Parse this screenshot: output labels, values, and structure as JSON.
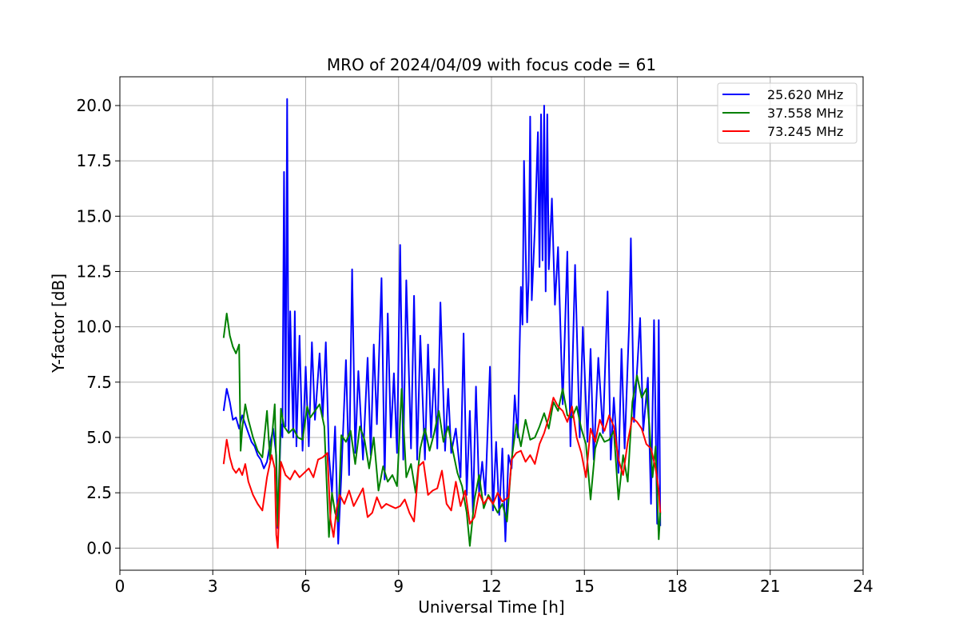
{
  "chart_data": {
    "type": "line",
    "title": "MRO of 2024/04/09 with focus code = 61",
    "xlabel": "Universal Time [h]",
    "ylabel": "Y-factor [dB]",
    "xlim": [
      0,
      24
    ],
    "ylim": [
      -1.0,
      21.3
    ],
    "xticks": [
      0,
      3,
      6,
      9,
      12,
      15,
      18,
      21,
      24
    ],
    "xtick_labels": [
      "0",
      "3",
      "6",
      "9",
      "12",
      "15",
      "18",
      "21",
      "24"
    ],
    "yticks": [
      0.0,
      2.5,
      5.0,
      7.5,
      10.0,
      12.5,
      15.0,
      17.5,
      20.0
    ],
    "ytick_labels": [
      "0.0",
      "2.5",
      "5.0",
      "7.5",
      "10.0",
      "12.5",
      "15.0",
      "17.5",
      "20.0"
    ],
    "grid": true,
    "legend_position": "top-right",
    "series": [
      {
        "name": "25.620 MHz",
        "color": "#0000ff",
        "x": [
          3.35,
          3.45,
          3.55,
          3.65,
          3.75,
          3.85,
          3.95,
          4.05,
          4.15,
          4.25,
          4.35,
          4.45,
          4.55,
          4.65,
          4.75,
          4.85,
          4.95,
          5.05,
          5.1,
          5.2,
          5.25,
          5.3,
          5.35,
          5.4,
          5.45,
          5.5,
          5.6,
          5.65,
          5.7,
          5.8,
          5.9,
          6.0,
          6.1,
          6.2,
          6.3,
          6.45,
          6.55,
          6.65,
          6.75,
          6.85,
          6.95,
          7.05,
          7.15,
          7.3,
          7.4,
          7.5,
          7.6,
          7.7,
          7.85,
          8.0,
          8.1,
          8.2,
          8.3,
          8.45,
          8.55,
          8.65,
          8.75,
          8.85,
          8.95,
          9.05,
          9.15,
          9.25,
          9.4,
          9.5,
          9.6,
          9.7,
          9.85,
          9.95,
          10.05,
          10.15,
          10.25,
          10.35,
          10.5,
          10.6,
          10.7,
          10.85,
          11.0,
          11.1,
          11.2,
          11.3,
          11.4,
          11.5,
          11.6,
          11.7,
          11.8,
          11.95,
          12.05,
          12.15,
          12.25,
          12.35,
          12.45,
          12.55,
          12.65,
          12.75,
          12.85,
          12.95,
          13.0,
          13.05,
          13.1,
          13.15,
          13.2,
          13.25,
          13.3,
          13.4,
          13.5,
          13.55,
          13.6,
          13.65,
          13.7,
          13.75,
          13.8,
          13.85,
          13.95,
          14.05,
          14.15,
          14.3,
          14.45,
          14.55,
          14.7,
          14.85,
          14.95,
          15.1,
          15.2,
          15.3,
          15.45,
          15.6,
          15.75,
          15.85,
          15.95,
          16.1,
          16.2,
          16.3,
          16.45,
          16.5,
          16.6,
          16.7,
          16.8,
          16.9,
          17.05,
          17.15,
          17.25,
          17.35,
          17.4,
          17.45
        ],
        "values": [
          6.2,
          7.2,
          6.6,
          5.8,
          5.9,
          5.4,
          6.0,
          5.6,
          5.2,
          4.8,
          4.6,
          4.2,
          4.0,
          3.6,
          3.9,
          4.7,
          5.4,
          4.2,
          0.9,
          5.6,
          5.0,
          17.0,
          5.5,
          20.3,
          5.3,
          10.7,
          5.0,
          10.7,
          4.6,
          9.6,
          4.4,
          8.2,
          4.6,
          9.3,
          5.8,
          8.8,
          5.9,
          9.3,
          4.2,
          2.5,
          5.5,
          0.2,
          3.3,
          8.5,
          3.3,
          12.6,
          4.3,
          8.0,
          4.0,
          8.6,
          4.2,
          9.2,
          5.6,
          12.2,
          3.1,
          10.6,
          5.0,
          7.9,
          4.3,
          13.7,
          4.0,
          12.1,
          4.5,
          11.4,
          4.0,
          9.6,
          4.0,
          9.2,
          5.0,
          8.1,
          4.5,
          11.1,
          4.4,
          7.2,
          4.3,
          5.4,
          3.2,
          9.7,
          2.4,
          6.2,
          1.6,
          7.3,
          2.5,
          3.9,
          2.4,
          8.2,
          1.7,
          4.8,
          1.5,
          4.5,
          0.3,
          4.2,
          3.6,
          6.9,
          5.0,
          11.8,
          10.1,
          17.5,
          13.8,
          10.2,
          12.1,
          19.5,
          11.2,
          14.5,
          18.8,
          12.7,
          19.6,
          13.0,
          20.0,
          11.6,
          19.6,
          12.6,
          15.8,
          11.0,
          13.6,
          6.5,
          13.4,
          4.6,
          12.8,
          5.0,
          10.0,
          4.8,
          9.0,
          4.0,
          8.6,
          5.2,
          11.6,
          4.0,
          6.8,
          3.4,
          9.0,
          4.5,
          10.3,
          14.0,
          5.7,
          8.0,
          10.4,
          5.3,
          7.7,
          2.0,
          10.3,
          1.1,
          10.3,
          1.0
        ]
      },
      {
        "name": "37.558 MHz",
        "color": "#008000",
        "x": [
          3.35,
          3.45,
          3.55,
          3.65,
          3.75,
          3.85,
          3.9,
          3.95,
          4.05,
          4.15,
          4.3,
          4.45,
          4.6,
          4.75,
          4.85,
          5.0,
          5.1,
          5.2,
          5.3,
          5.45,
          5.6,
          5.75,
          5.9,
          6.05,
          6.15,
          6.3,
          6.45,
          6.6,
          6.75,
          6.85,
          6.95,
          7.05,
          7.15,
          7.3,
          7.45,
          7.6,
          7.75,
          7.9,
          8.05,
          8.2,
          8.35,
          8.5,
          8.65,
          8.8,
          8.95,
          9.1,
          9.25,
          9.4,
          9.55,
          9.7,
          9.85,
          10.0,
          10.15,
          10.3,
          10.45,
          10.6,
          10.75,
          10.9,
          11.05,
          11.2,
          11.3,
          11.45,
          11.6,
          11.75,
          11.9,
          12.05,
          12.2,
          12.35,
          12.5,
          12.65,
          12.8,
          12.95,
          13.1,
          13.25,
          13.4,
          13.55,
          13.7,
          13.85,
          14.0,
          14.15,
          14.3,
          14.45,
          14.6,
          14.75,
          14.9,
          15.05,
          15.2,
          15.35,
          15.5,
          15.65,
          15.8,
          15.95,
          16.1,
          16.25,
          16.4,
          16.55,
          16.7,
          16.85,
          17.0,
          17.1,
          17.2,
          17.3,
          17.4,
          17.45
        ],
        "values": [
          9.5,
          10.6,
          9.6,
          9.1,
          8.8,
          9.2,
          4.4,
          5.4,
          6.5,
          5.8,
          5.0,
          4.4,
          4.1,
          6.2,
          4.0,
          6.5,
          1.0,
          6.3,
          5.5,
          5.2,
          5.4,
          5.0,
          4.9,
          6.4,
          5.9,
          6.2,
          6.5,
          5.5,
          0.5,
          2.5,
          1.6,
          1.2,
          5.1,
          4.8,
          5.3,
          3.8,
          5.5,
          4.9,
          3.6,
          5.0,
          2.6,
          3.7,
          3.0,
          3.3,
          2.8,
          7.2,
          3.2,
          3.8,
          2.5,
          4.5,
          5.4,
          4.4,
          5.2,
          6.2,
          4.8,
          5.5,
          4.4,
          3.4,
          2.8,
          1.6,
          0.1,
          2.2,
          3.3,
          1.8,
          2.4,
          2.0,
          1.6,
          2.0,
          1.2,
          4.0,
          5.6,
          4.6,
          5.8,
          4.9,
          5.0,
          5.5,
          6.1,
          5.4,
          6.6,
          6.2,
          7.2,
          6.0,
          5.9,
          6.4,
          5.4,
          4.7,
          2.2,
          4.5,
          5.2,
          4.8,
          4.9,
          5.3,
          2.2,
          4.2,
          3.0,
          6.6,
          7.8,
          6.8,
          7.2,
          5.5,
          3.2,
          4.6,
          0.4,
          1.6
        ]
      },
      {
        "name": "73.245 MHz",
        "color": "#ff0000",
        "x": [
          3.35,
          3.45,
          3.55,
          3.65,
          3.75,
          3.85,
          3.95,
          4.05,
          4.15,
          4.3,
          4.45,
          4.6,
          4.75,
          4.9,
          5.0,
          5.05,
          5.1,
          5.2,
          5.35,
          5.5,
          5.65,
          5.8,
          5.95,
          6.1,
          6.25,
          6.4,
          6.55,
          6.7,
          6.8,
          6.9,
          7.0,
          7.1,
          7.25,
          7.4,
          7.55,
          7.7,
          7.85,
          8.0,
          8.15,
          8.3,
          8.45,
          8.6,
          8.75,
          8.9,
          9.05,
          9.2,
          9.35,
          9.5,
          9.65,
          9.8,
          9.95,
          10.1,
          10.25,
          10.4,
          10.55,
          10.7,
          10.85,
          11.0,
          11.15,
          11.3,
          11.45,
          11.6,
          11.75,
          11.9,
          12.05,
          12.2,
          12.35,
          12.55,
          12.65,
          12.8,
          12.95,
          13.1,
          13.25,
          13.4,
          13.55,
          13.7,
          13.85,
          14.0,
          14.15,
          14.3,
          14.45,
          14.6,
          14.75,
          14.9,
          15.05,
          15.2,
          15.35,
          15.5,
          15.65,
          15.8,
          15.95,
          16.1,
          16.25,
          16.4,
          16.55,
          16.7,
          16.85,
          17.0,
          17.15,
          17.3,
          17.4,
          17.45
        ],
        "values": [
          3.8,
          4.9,
          4.1,
          3.6,
          3.4,
          3.6,
          3.3,
          3.8,
          3.0,
          2.4,
          2.0,
          1.7,
          3.2,
          4.2,
          3.6,
          0.6,
          0.0,
          3.9,
          3.3,
          3.1,
          3.5,
          3.2,
          3.4,
          3.6,
          3.2,
          4.0,
          4.1,
          4.3,
          1.3,
          0.5,
          1.8,
          2.4,
          2.0,
          2.6,
          1.9,
          2.3,
          2.7,
          1.4,
          1.6,
          2.3,
          1.8,
          2.0,
          1.9,
          1.8,
          1.9,
          2.2,
          1.6,
          1.2,
          3.7,
          3.9,
          2.4,
          2.6,
          2.7,
          3.5,
          2.0,
          1.7,
          3.0,
          1.9,
          2.6,
          1.1,
          1.4,
          2.5,
          2.0,
          2.3,
          2.0,
          2.5,
          2.1,
          2.3,
          4.0,
          4.3,
          4.4,
          3.9,
          4.2,
          3.8,
          4.7,
          5.2,
          5.9,
          6.8,
          6.4,
          6.2,
          5.7,
          6.4,
          5.0,
          4.3,
          3.2,
          5.4,
          4.8,
          5.8,
          5.3,
          6.0,
          5.5,
          4.0,
          3.3,
          4.8,
          5.9,
          5.7,
          5.4,
          4.7,
          4.5,
          3.6,
          2.6,
          1.6
        ]
      }
    ]
  }
}
